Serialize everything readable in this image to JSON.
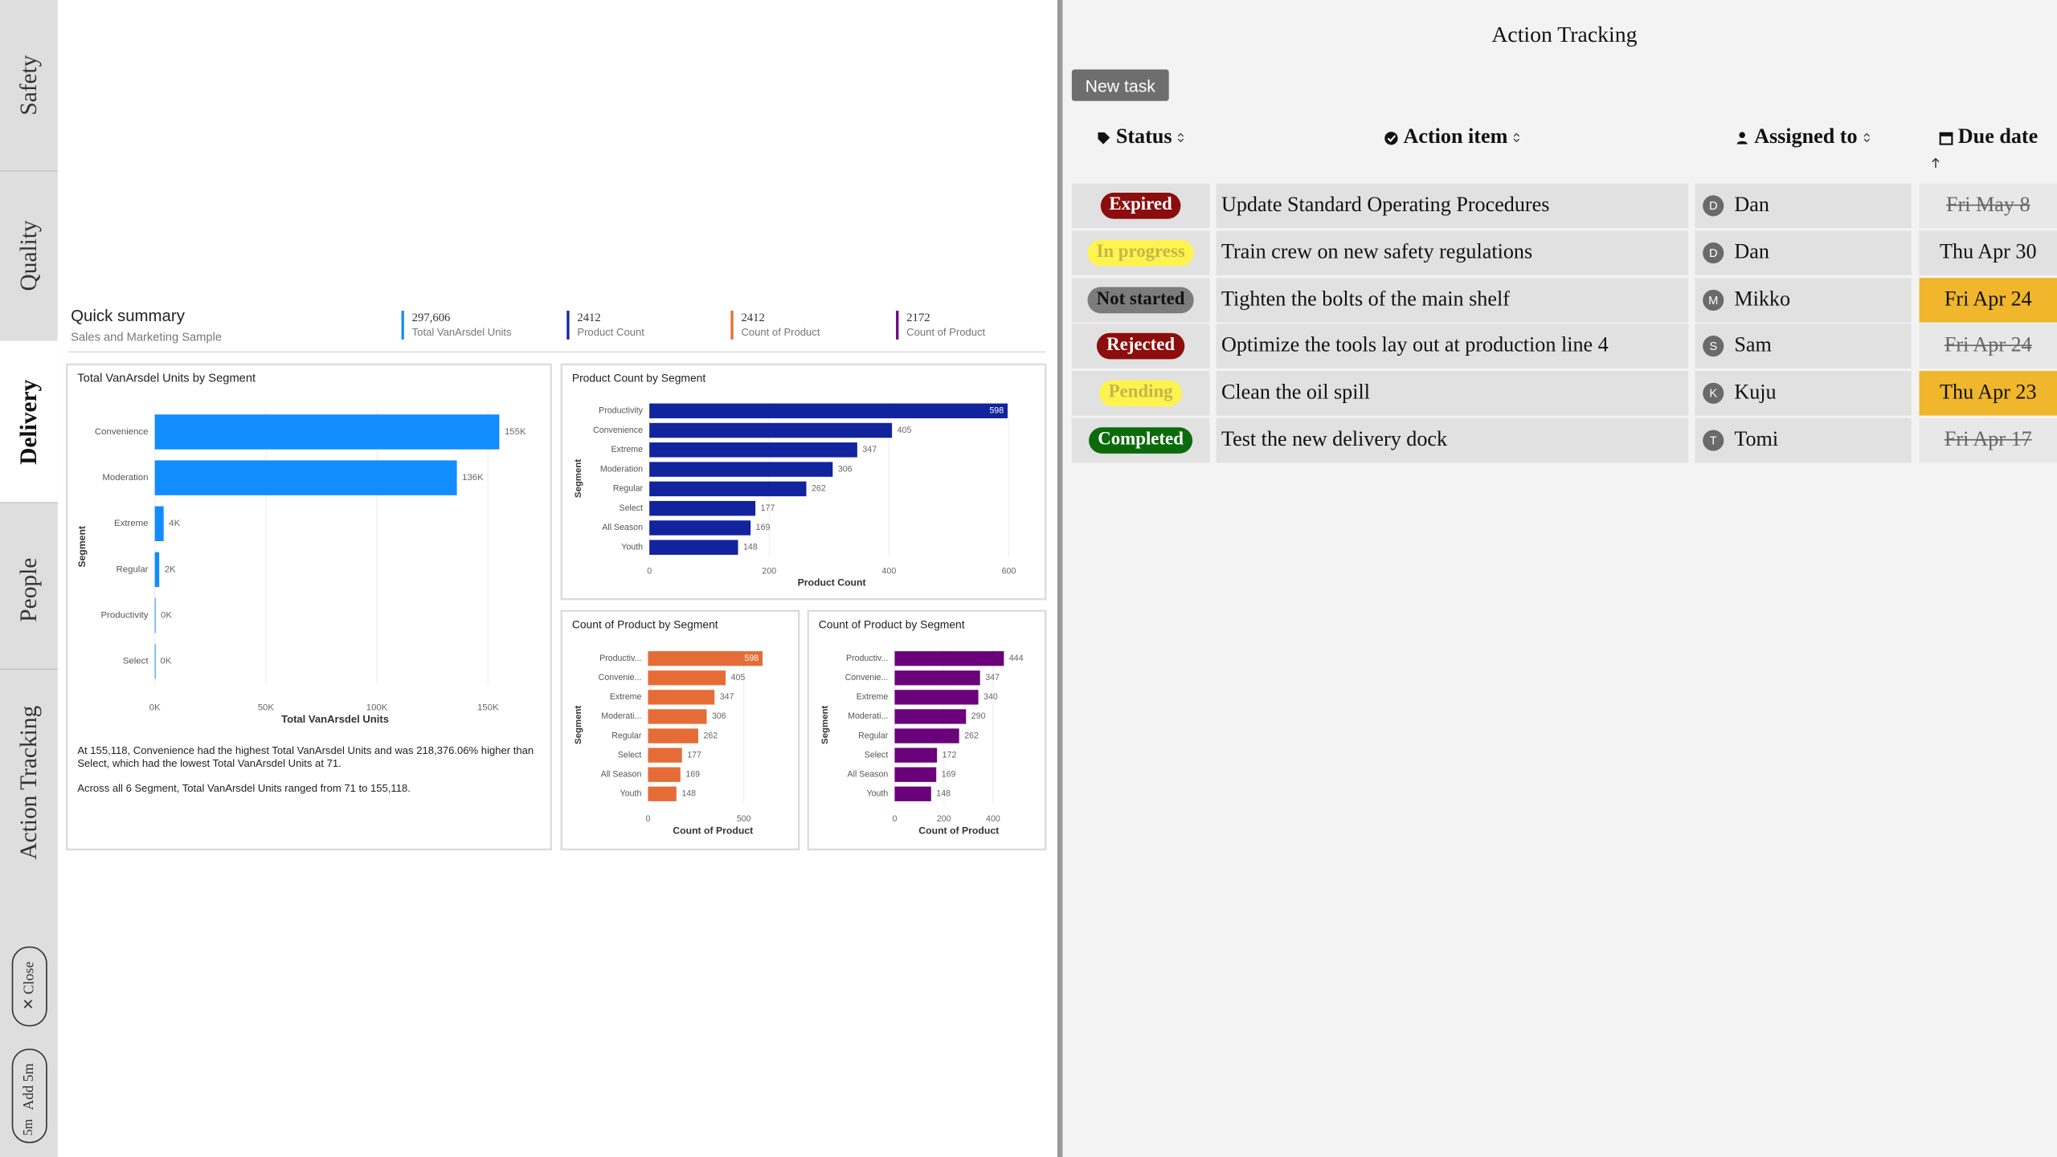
{
  "sidebar": {
    "tabs": [
      "Safety",
      "Quality",
      "Delivery",
      "People",
      "Action Tracking"
    ],
    "close": "✕ Close",
    "add": "Add 5m",
    "timer": "5m"
  },
  "summary": {
    "title": "Quick summary",
    "subtitle": "Sales and Marketing Sample",
    "kpis": [
      {
        "value": "297,606",
        "label": "Total VanArsdel Units",
        "color": "#118dff"
      },
      {
        "value": "2412",
        "label": "Product Count",
        "color": "#12239e"
      },
      {
        "value": "2412",
        "label": "Count of Product",
        "color": "#e66c37"
      },
      {
        "value": "2172",
        "label": "Count of Product",
        "color": "#6b007b"
      }
    ]
  },
  "chart_data": [
    {
      "type": "bar",
      "orientation": "horizontal",
      "title": "Total VanArsdel Units by Segment",
      "categories": [
        "Convenience",
        "Moderation",
        "Extreme",
        "Regular",
        "Productivity",
        "Select"
      ],
      "values": [
        155118,
        136000,
        4000,
        2000,
        300,
        71
      ],
      "value_labels": [
        "155K",
        "136K",
        "4K",
        "2K",
        "0K",
        "0K"
      ],
      "color": "#118dff",
      "xlabel": "Total VanArsdel Units",
      "ylabel": "Segment",
      "xlim": [
        0,
        160000
      ],
      "xticks": [
        {
          "value": 0,
          "label": "0K"
        },
        {
          "value": 50000,
          "label": "50K"
        },
        {
          "value": 100000,
          "label": "100K"
        },
        {
          "value": 150000,
          "label": "150K"
        }
      ],
      "grid": true,
      "label_inside_max": false
    },
    {
      "type": "bar",
      "orientation": "horizontal",
      "title": "Product Count by Segment",
      "categories": [
        "Productivity",
        "Convenience",
        "Extreme",
        "Moderation",
        "Regular",
        "Select",
        "All Season",
        "Youth"
      ],
      "values": [
        598,
        405,
        347,
        306,
        262,
        177,
        169,
        148
      ],
      "color": "#12239e",
      "xlabel": "Product Count",
      "ylabel": "Segment",
      "xlim": [
        0,
        600
      ],
      "xticks": [
        0,
        200,
        400,
        600
      ],
      "grid": true,
      "label_inside_max": true
    },
    {
      "type": "bar",
      "orientation": "horizontal",
      "title": "Count of Product by Segment",
      "categories": [
        "Productiv...",
        "Convenie...",
        "Extreme",
        "Moderati...",
        "Regular",
        "Select",
        "All Season",
        "Youth"
      ],
      "values": [
        598,
        405,
        347,
        306,
        262,
        177,
        169,
        148
      ],
      "color": "#e66c37",
      "xlabel": "Count of Product",
      "ylabel": "Segment",
      "xlim": [
        0,
        650
      ],
      "xticks": [
        0,
        500
      ],
      "grid": true,
      "label_inside_max": true
    },
    {
      "type": "bar",
      "orientation": "horizontal",
      "title": "Count of Product by Segment",
      "categories": [
        "Productiv...",
        "Convenie...",
        "Extreme",
        "Moderati...",
        "Regular",
        "Select",
        "All Season",
        "Youth"
      ],
      "values": [
        444,
        347,
        340,
        290,
        262,
        172,
        169,
        148
      ],
      "color": "#6b007b",
      "xlabel": "Count of Product",
      "ylabel": "Segment",
      "xlim": [
        0,
        500
      ],
      "xticks": [
        0,
        200,
        400
      ],
      "grid": true,
      "label_inside_max": false
    }
  ],
  "narrative": [
    "At 155,118, Convenience had the highest Total VanArsdel Units and was 218,376.06% higher than Select, which had the lowest Total VanArsdel Units at 71.",
    "Across all 6 Segment, Total VanArsdel Units ranged from 71 to 155,118."
  ],
  "tracker": {
    "title": "Action Tracking",
    "new_task": "New task",
    "columns": [
      "Status",
      "Action item",
      "Assigned to",
      "Due date"
    ],
    "rows": [
      {
        "status": "Expired",
        "status_color": "#8b0d0d",
        "status_text_color": "#ffffff",
        "item": "Update Standard Operating Procedures",
        "initial": "D",
        "assignee": "Dan",
        "due": "Fri May 8",
        "due_style": "struck"
      },
      {
        "status": "In progress",
        "status_color": "#fff44f",
        "status_text_color": "#c4b64a",
        "item": "Train crew on new safety regulations",
        "initial": "D",
        "assignee": "Dan",
        "due": "Thu Apr 30",
        "due_style": "plain"
      },
      {
        "status": "Not started",
        "status_color": "#7c7c7c",
        "status_text_color": "#111111",
        "item": "Tighten the bolts of the main shelf",
        "initial": "M",
        "assignee": "Mikko",
        "due": "Fri Apr 24",
        "due_style": "highlight"
      },
      {
        "status": "Rejected",
        "status_color": "#8b0d0d",
        "status_text_color": "#ffffff",
        "item": "Optimize the tools lay out at production line 4",
        "initial": "S",
        "assignee": "Sam",
        "due": "Fri Apr 24",
        "due_style": "struck"
      },
      {
        "status": "Pending",
        "status_color": "#fff44f",
        "status_text_color": "#c4b64a",
        "item": "Clean the oil spill",
        "initial": "K",
        "assignee": "Kuju",
        "due": "Thu Apr 23",
        "due_style": "highlight"
      },
      {
        "status": "Completed",
        "status_color": "#0b6b0b",
        "status_text_color": "#ffffff",
        "item": "Test the new delivery dock",
        "initial": "T",
        "assignee": "Tomi",
        "due": "Fri Apr 17",
        "due_style": "struck"
      }
    ]
  }
}
